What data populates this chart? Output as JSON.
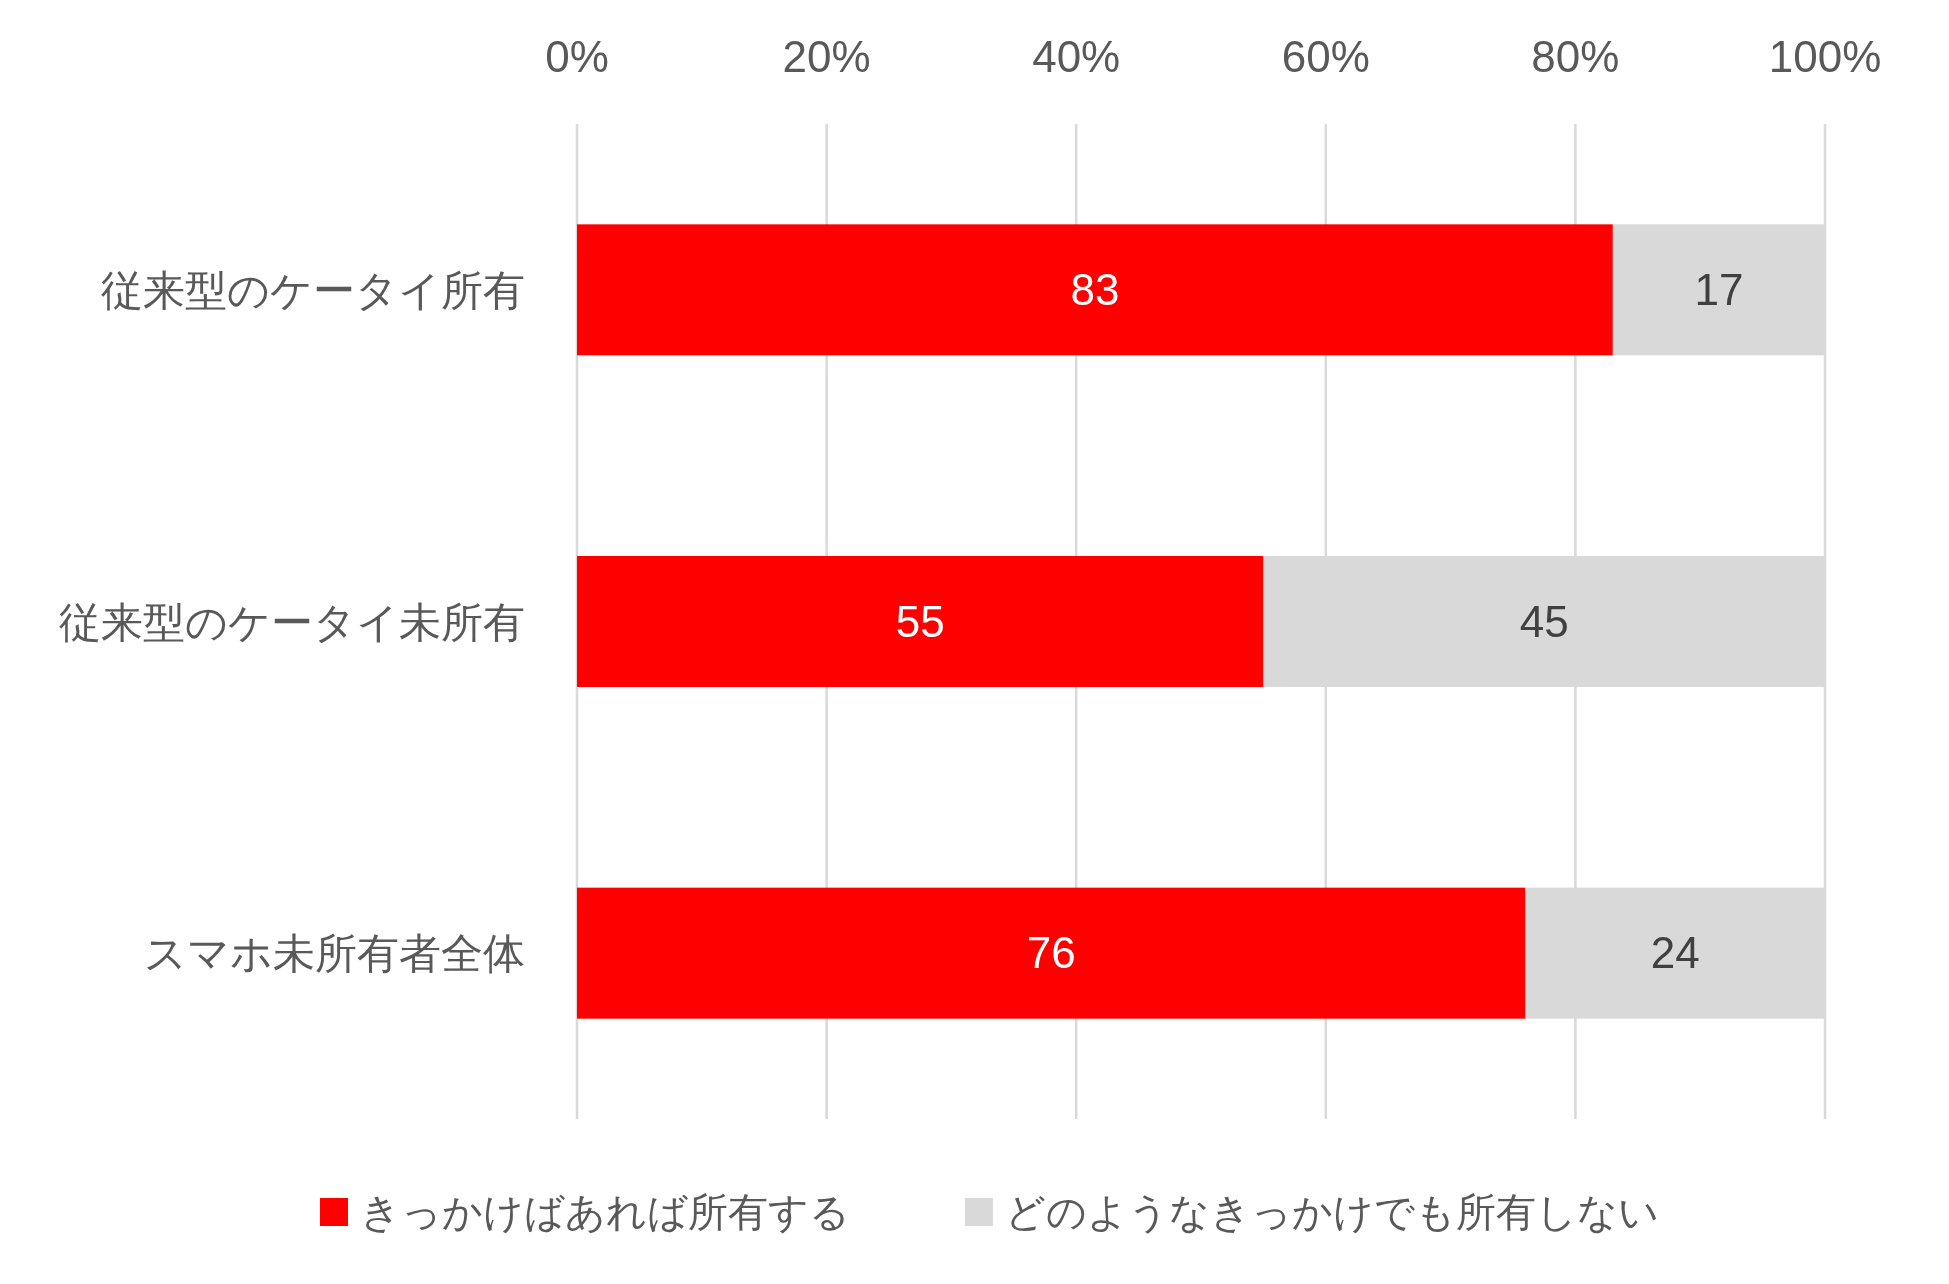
{
  "chart_data": {
    "type": "bar",
    "orientation": "horizontal",
    "stacked": true,
    "data_labels": true,
    "grid": "x",
    "legend": "bottom",
    "categories": [
      "従来型のケータイ所有",
      "従来型のケータイ未所有",
      "スマホ未所有者全体"
    ],
    "series": [
      {
        "name": "きっかけばあれば所有する",
        "color": "#ff0000",
        "values": [
          83,
          55,
          76
        ]
      },
      {
        "name": "どのようなきっかけでも所有しない",
        "color": "#d9d9d9",
        "values": [
          17,
          45,
          24
        ]
      }
    ],
    "xlim": [
      0,
      100
    ],
    "xticks": [
      {
        "value": 0,
        "label": "0%"
      },
      {
        "value": 20,
        "label": "20%"
      },
      {
        "value": 40,
        "label": "40%"
      },
      {
        "value": 60,
        "label": "60%"
      },
      {
        "value": 80,
        "label": "80%"
      },
      {
        "value": 100,
        "label": "100%"
      }
    ]
  }
}
